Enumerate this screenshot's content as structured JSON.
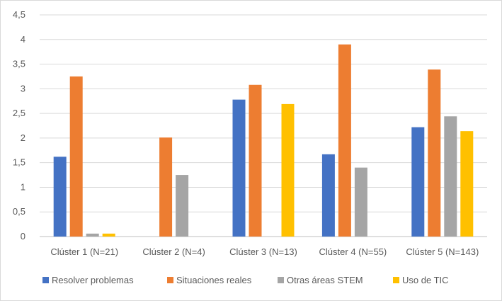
{
  "chart_data": {
    "type": "bar",
    "title": "",
    "xlabel": "",
    "ylabel": "",
    "ylim": [
      0,
      4.5
    ],
    "ytick_step": 0.5,
    "yticks": [
      "0",
      "0,5",
      "1",
      "1,5",
      "2",
      "2,5",
      "3",
      "3,5",
      "4",
      "4,5"
    ],
    "grid": true,
    "legend_position": "bottom",
    "categories": [
      "Clúster 1 (N=21)",
      "Clúster 2 (N=4)",
      "Clúster 3 (N=13)",
      "Clúster 4 (N=55)",
      "Clúster 5 (N=143)"
    ],
    "series": [
      {
        "name": "Resolver problemas",
        "color": "#4472C4",
        "values": [
          1.62,
          0,
          2.78,
          1.67,
          2.22
        ]
      },
      {
        "name": "Situaciones reales",
        "color": "#ED7D31",
        "values": [
          3.25,
          2.01,
          3.08,
          3.9,
          3.39
        ]
      },
      {
        "name": "Otras áreas STEM",
        "color": "#A5A5A5",
        "values": [
          0.06,
          1.25,
          0,
          1.4,
          2.44
        ]
      },
      {
        "name": "Uso de TIC",
        "color": "#FFC000",
        "values": [
          0.06,
          0,
          2.69,
          0,
          2.14
        ]
      }
    ]
  }
}
